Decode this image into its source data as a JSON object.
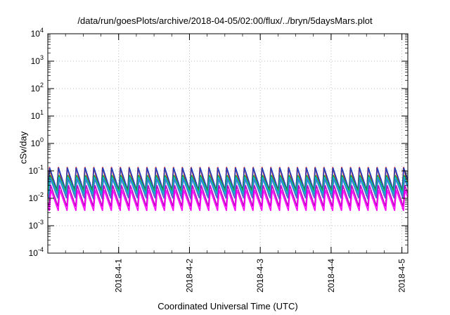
{
  "chart_data": {
    "type": "line",
    "title": "/data/run/goesPlots/archive/2018-04-05/02:00/flux/../bryn/5daysMars.plot",
    "xlabel": "Coordinated Universal Time (UTC)",
    "ylabel": "cSv/day",
    "y_scale": "log",
    "ylim": [
      0.0001,
      10000
    ],
    "y_ticks": [
      {
        "base": "10",
        "exp": "-4",
        "value": 0.0001
      },
      {
        "base": "10",
        "exp": "-3",
        "value": 0.001
      },
      {
        "base": "10",
        "exp": "-2",
        "value": 0.01
      },
      {
        "base": "10",
        "exp": "-1",
        "value": 0.1
      },
      {
        "base": "10",
        "exp": "0",
        "value": 1
      },
      {
        "base": "10",
        "exp": "1",
        "value": 10
      },
      {
        "base": "10",
        "exp": "2",
        "value": 100
      },
      {
        "base": "10",
        "exp": "3",
        "value": 1000
      },
      {
        "base": "10",
        "exp": "4",
        "value": 10000
      }
    ],
    "xlim": [
      "2018-03-31 00:00",
      "2018-04-05 02:00"
    ],
    "x_ticks": [
      "2018-4-1",
      "2018-4-2",
      "2018-4-3",
      "2018-4-4",
      "2018-4-5"
    ],
    "grid": true,
    "series": [
      {
        "color": "#d62728",
        "peak": 0.14,
        "trough": 0.012
      },
      {
        "color": "#1f3fbf",
        "peak": 0.13,
        "trough": 0.02
      },
      {
        "color": "#2ca02c",
        "peak": 0.07,
        "trough": 0.018
      },
      {
        "color": "#00bcd4",
        "peak": 0.06,
        "trough": 0.014
      },
      {
        "color": "#3a7bd5",
        "peak": 0.05,
        "trough": 0.01
      },
      {
        "color": "#c000c0",
        "peak": 0.03,
        "trough": 0.005
      },
      {
        "color": "#ff00ff",
        "peak": 0.02,
        "trough": 0.0035
      }
    ],
    "cycle_hours": 3,
    "annotation": "sawtooth pattern: sharp rise then decay each cycle"
  }
}
